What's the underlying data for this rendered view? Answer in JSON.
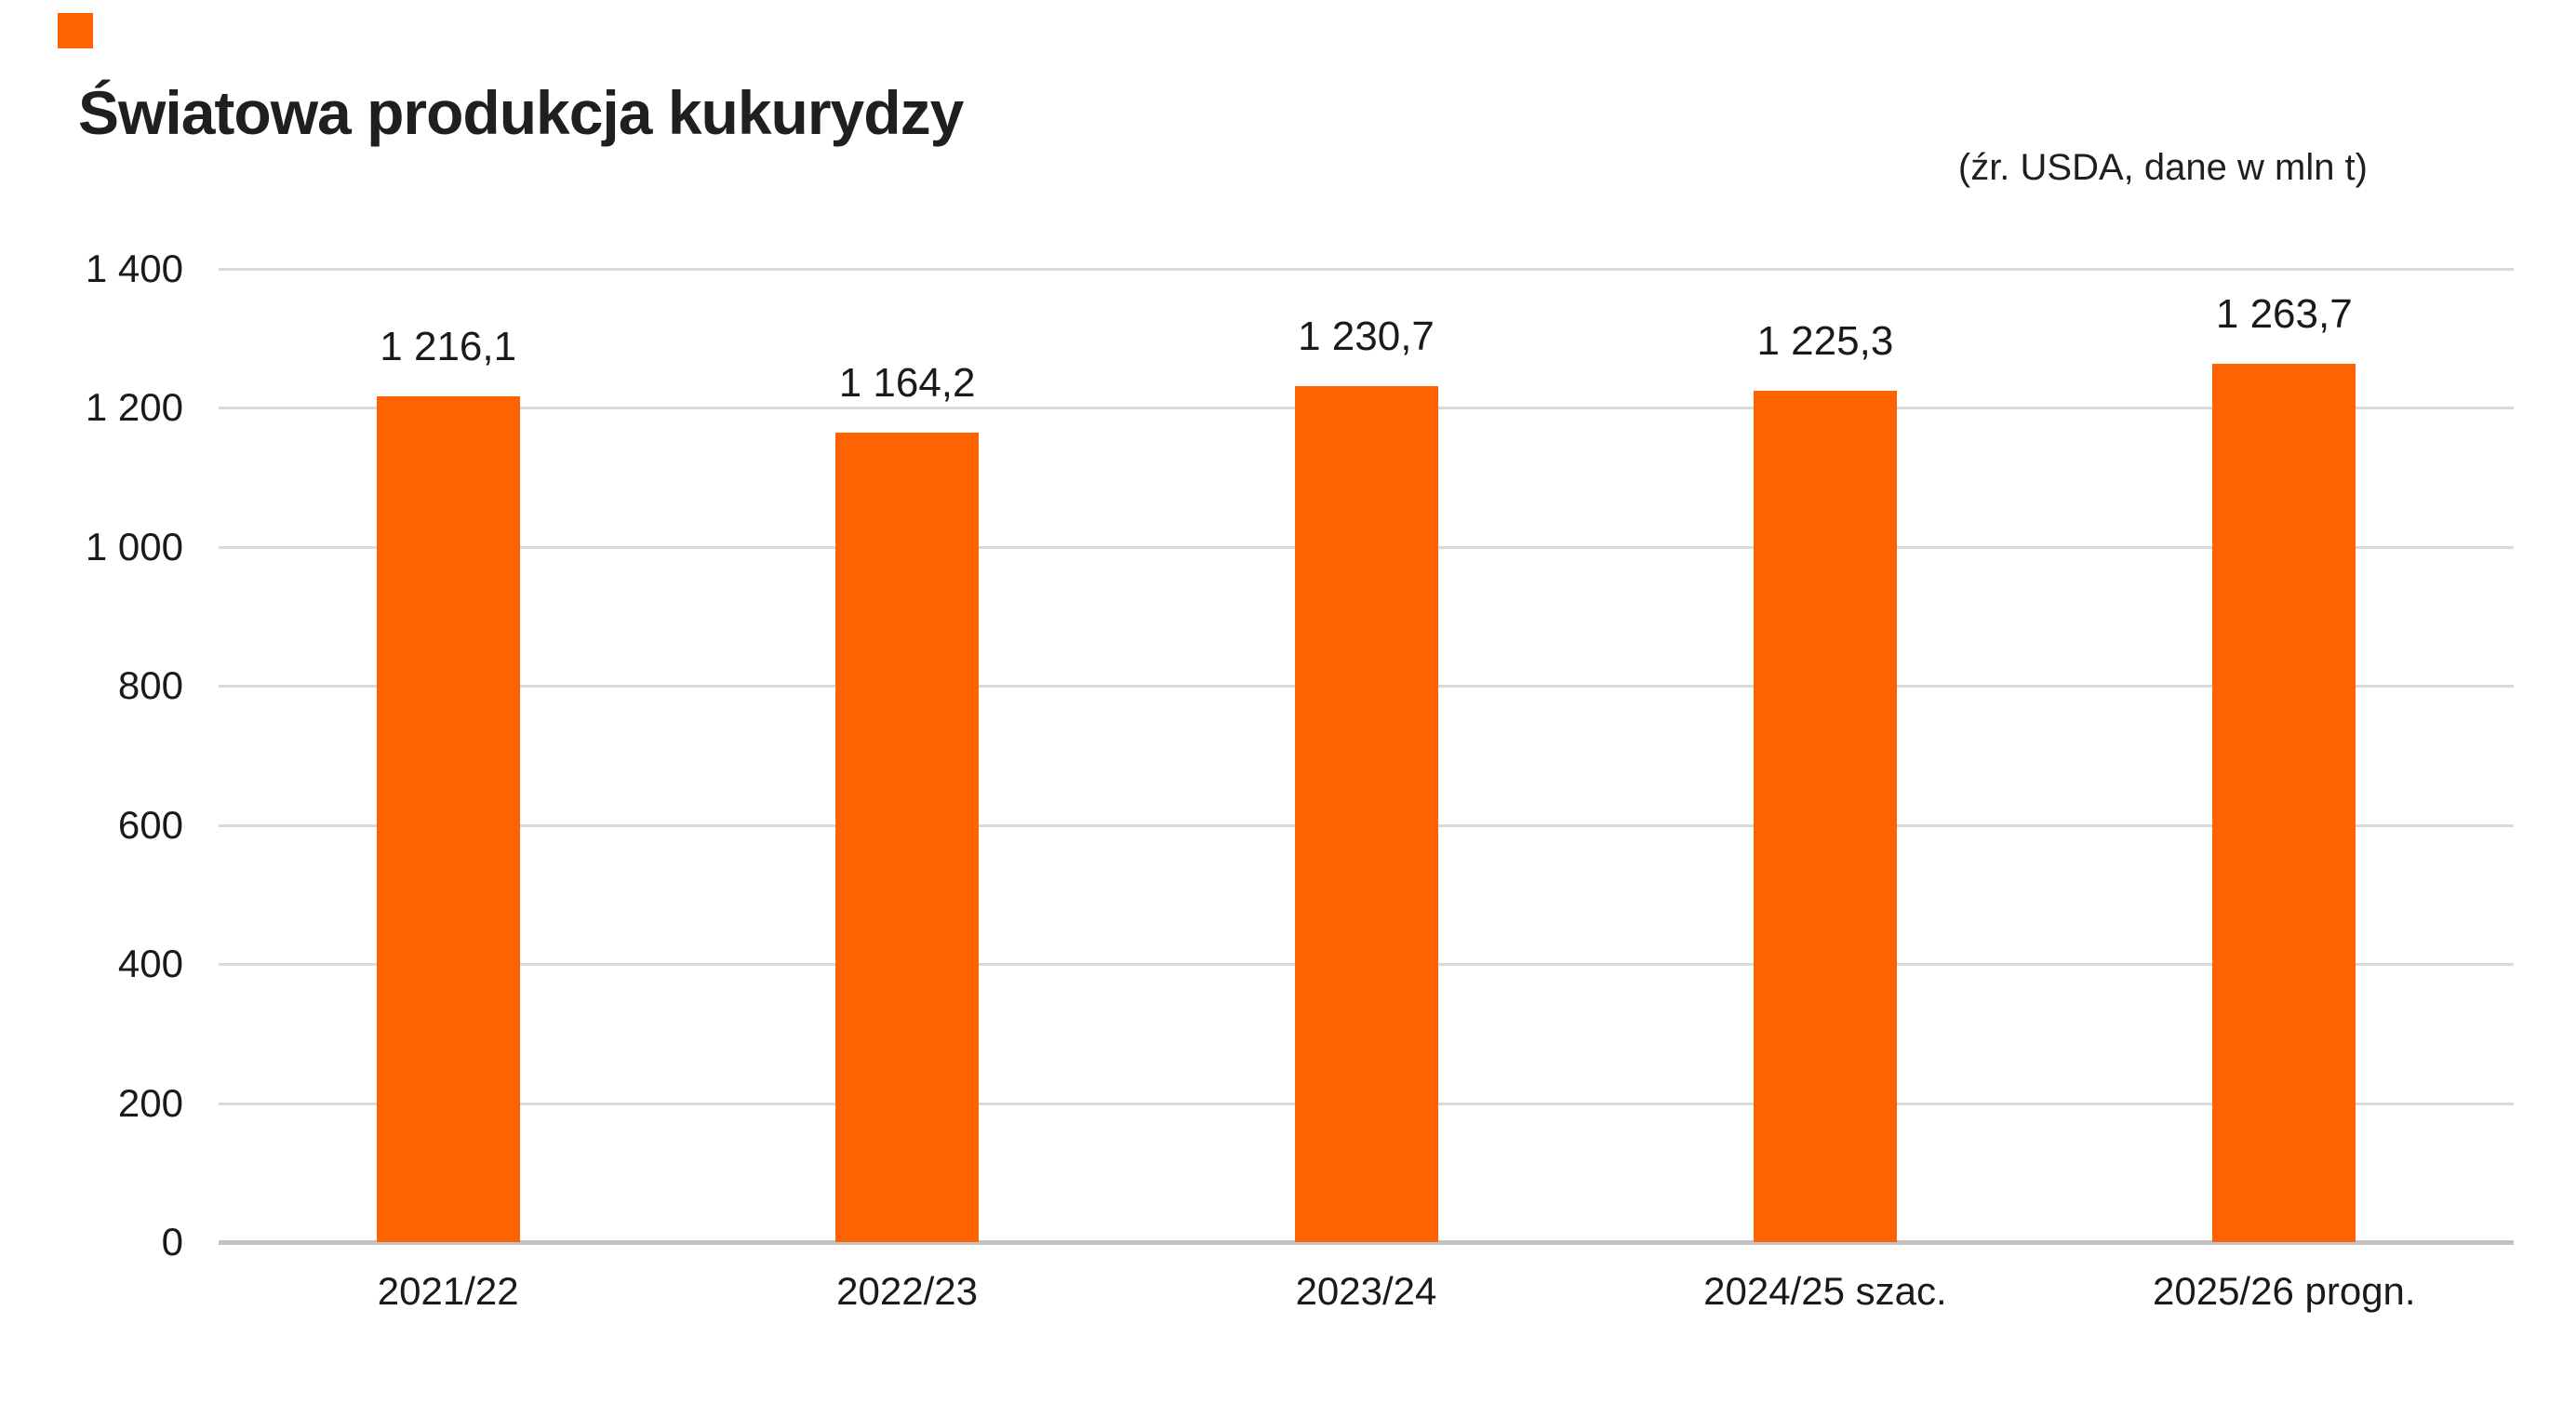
{
  "header": {
    "title": "Światowa produkcja kukurydzy",
    "source_note": "(źr. USDA, dane w mln t)"
  },
  "brand": {
    "mark": "orange-square",
    "color": "#FF6200"
  },
  "chart_data": {
    "type": "bar",
    "title": "Światowa produkcja kukurydzy",
    "subtitle": "",
    "source_note": "(źr. USDA, dane w mln t)",
    "unit": "mln t",
    "categories": [
      "2021/22",
      "2022/23",
      "2023/24",
      "2024/25 szac.",
      "2025/26 progn."
    ],
    "values": [
      1216.1,
      1164.2,
      1230.7,
      1225.3,
      1263.7
    ],
    "value_labels": [
      "1 216,1",
      "1 164,2",
      "1 230,7",
      "1 225,3",
      "1 263,7"
    ],
    "xlabel": "",
    "ylabel": "",
    "ylim": [
      0,
      1400
    ],
    "yticks": [
      0,
      200,
      400,
      600,
      800,
      1000,
      1200,
      1400
    ],
    "ytick_labels": [
      "0",
      "200",
      "400",
      "600",
      "800",
      "1 000",
      "1 200",
      "1 400"
    ],
    "grid": "horizontal",
    "legend": "none",
    "bar_color": "#FF6200"
  },
  "colors": {
    "bar": "#FF6200",
    "gridline": "#D9D9D9",
    "baseline": "#C2C2C2",
    "text": "#1A1A1A",
    "background": "#FFFFFF"
  }
}
